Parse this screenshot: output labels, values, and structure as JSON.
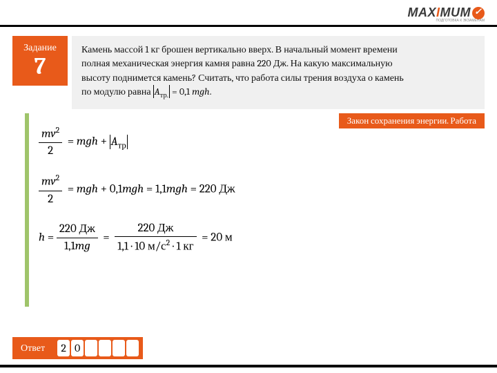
{
  "brand": {
    "name_main": "MAX",
    "name_accent": "I",
    "name_rest": "MUM",
    "subtitle": "ПОДГОТОВКА К ЭКЗАМЕНАМ"
  },
  "task": {
    "label": "Задание",
    "number": "7"
  },
  "problem": {
    "line1": "Камень массой 1 кг брошен вертикально вверх. В начальный момент времени",
    "line2": "полная механическая энергия камня равна 220 Дж. На какую максимальную",
    "line3": "высоту поднимется камень? Считать, что работа силы трения воздуха о камень",
    "line4_pre": "по модулю равна ",
    "line4_eq": "|A_тр.| = 0,1 mgh."
  },
  "topic": "Закон сохранения энергии. Работа",
  "solution": {
    "eq1_lhs_num": "mv²",
    "eq1_lhs_den": "2",
    "eq1_rhs": " = mgh + |A_тр|",
    "eq2_lhs_num": "mv²",
    "eq2_lhs_den": "2",
    "eq2_rhs": " = mgh + 0,1mgh = 1,1mgh = 220 Дж",
    "eq3_h": "h = ",
    "eq3_f1_num": "220 Дж",
    "eq3_f1_den": "1,1mg",
    "eq3_eq": " = ",
    "eq3_f2_num": "220 Дж",
    "eq3_f2_den": "1,1 · 10 м/с² · 1 кг",
    "eq3_result": " = 20 м"
  },
  "answer": {
    "label": "Ответ",
    "boxes": [
      "2",
      "0",
      "",
      "",
      "",
      ""
    ]
  },
  "colors": {
    "accent": "#e85a1a",
    "green": "#9fc46a",
    "gray_bg": "#f0f0f0"
  }
}
